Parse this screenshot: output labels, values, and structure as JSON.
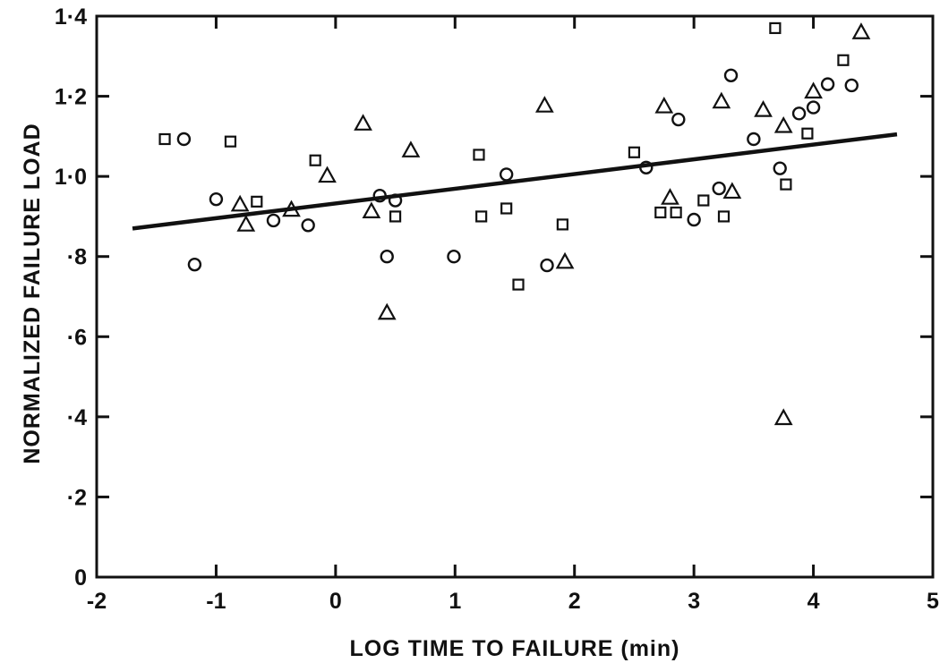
{
  "chart_data": {
    "type": "scatter",
    "xlabel": "LOG TIME TO FAILURE (min)",
    "ylabel": "NORMALIZED FAILURE LOAD",
    "xlim": [
      -2,
      5
    ],
    "ylim": [
      0,
      1.4
    ],
    "x_ticks": [
      -2,
      -1,
      0,
      1,
      2,
      3,
      4,
      5
    ],
    "x_tick_labels": [
      "-2",
      "-1",
      "0",
      "1",
      "2",
      "3",
      "4",
      "5"
    ],
    "y_ticks": [
      0,
      0.2,
      0.4,
      0.6,
      0.8,
      1.0,
      1.2,
      1.4
    ],
    "y_tick_labels": [
      "0",
      "·2",
      "·4",
      "·6",
      "·8",
      "1·0",
      "1·2",
      "1·4"
    ],
    "grid": false,
    "trend_line": {
      "x": [
        -1.7,
        4.7
      ],
      "y": [
        0.87,
        1.105
      ]
    },
    "series": [
      {
        "marker": "circle",
        "points": [
          [
            -1.27,
            1.093
          ],
          [
            -1.18,
            0.78
          ],
          [
            -1.0,
            0.943
          ],
          [
            -0.52,
            0.89
          ],
          [
            -0.23,
            0.878
          ],
          [
            0.37,
            0.952
          ],
          [
            0.43,
            0.8
          ],
          [
            0.5,
            0.94
          ],
          [
            0.99,
            0.8
          ],
          [
            1.43,
            1.005
          ],
          [
            1.77,
            0.778
          ],
          [
            2.6,
            1.022
          ],
          [
            2.87,
            1.142
          ],
          [
            3.0,
            0.892
          ],
          [
            3.21,
            0.97
          ],
          [
            3.31,
            1.252
          ],
          [
            3.5,
            1.093
          ],
          [
            3.72,
            1.02
          ],
          [
            3.88,
            1.157
          ],
          [
            4.0,
            1.172
          ],
          [
            4.12,
            1.23
          ],
          [
            4.32,
            1.227
          ]
        ]
      },
      {
        "marker": "square",
        "points": [
          [
            -1.43,
            1.093
          ],
          [
            -0.88,
            1.087
          ],
          [
            -0.66,
            0.937
          ],
          [
            -0.17,
            1.04
          ],
          [
            0.5,
            0.9
          ],
          [
            1.2,
            1.054
          ],
          [
            1.22,
            0.9
          ],
          [
            1.43,
            0.92
          ],
          [
            1.53,
            0.73
          ],
          [
            1.9,
            0.88
          ],
          [
            2.5,
            1.06
          ],
          [
            2.72,
            0.91
          ],
          [
            2.85,
            0.91
          ],
          [
            3.08,
            0.94
          ],
          [
            3.25,
            0.9
          ],
          [
            3.68,
            1.37
          ],
          [
            3.77,
            0.98
          ],
          [
            3.95,
            1.107
          ],
          [
            4.25,
            1.29
          ]
        ]
      },
      {
        "marker": "triangle",
        "points": [
          [
            -0.8,
            0.93
          ],
          [
            -0.75,
            0.88
          ],
          [
            -0.37,
            0.917
          ],
          [
            -0.07,
            1.002
          ],
          [
            0.23,
            1.132
          ],
          [
            0.3,
            0.913
          ],
          [
            0.43,
            0.66
          ],
          [
            0.63,
            1.065
          ],
          [
            1.75,
            1.177
          ],
          [
            1.92,
            0.787
          ],
          [
            2.75,
            1.175
          ],
          [
            2.8,
            0.947
          ],
          [
            3.23,
            1.187
          ],
          [
            3.32,
            0.962
          ],
          [
            3.58,
            1.166
          ],
          [
            3.75,
            1.126
          ],
          [
            3.75,
            0.397
          ],
          [
            4.0,
            1.212
          ],
          [
            4.4,
            1.36
          ]
        ]
      }
    ]
  }
}
